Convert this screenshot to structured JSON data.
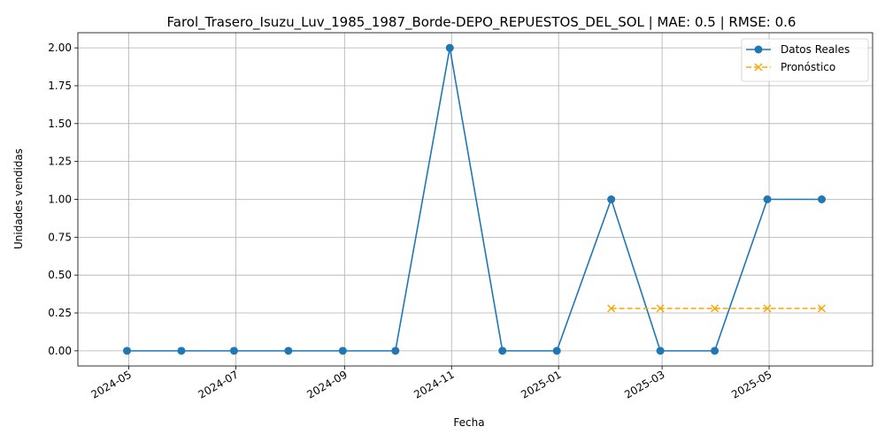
{
  "chart_data": {
    "type": "line",
    "title": "Farol_Trasero_Isuzu_Luv_1985_1987_Borde-DEPO_REPUESTOS_DEL_SOL | MAE: 0.5 | RMSE: 0.6",
    "xlabel": "Fecha",
    "ylabel": "Unidades vendidas",
    "xlim": [
      "2024-04-02",
      "2025-06-29"
    ],
    "ylim": [
      -0.1,
      2.1
    ],
    "x_ticks": [
      "2024-05",
      "2024-07",
      "2024-09",
      "2024-11",
      "2025-01",
      "2025-03",
      "2025-05"
    ],
    "y_ticks": [
      "0.00",
      "0.25",
      "0.50",
      "0.75",
      "1.00",
      "1.25",
      "1.50",
      "1.75",
      "2.00"
    ],
    "grid": true,
    "legend_position": "top-right",
    "series": [
      {
        "name": "Datos Reales",
        "color": "#1f77b4",
        "marker": "circle",
        "linestyle": "solid",
        "x": [
          "2024-04-30",
          "2024-05-31",
          "2024-06-30",
          "2024-07-31",
          "2024-08-31",
          "2024-09-30",
          "2024-10-31",
          "2024-11-30",
          "2024-12-31",
          "2025-01-31",
          "2025-02-28",
          "2025-03-31",
          "2025-04-30",
          "2025-05-31"
        ],
        "y": [
          0,
          0,
          0,
          0,
          0,
          0,
          2,
          0,
          0,
          1,
          0,
          0,
          1,
          1
        ]
      },
      {
        "name": "Pronóstico",
        "color": "#ffa500",
        "marker": "x",
        "linestyle": "dashed",
        "x": [
          "2025-01-31",
          "2025-02-28",
          "2025-03-31",
          "2025-04-30",
          "2025-05-31"
        ],
        "y": [
          0.28,
          0.28,
          0.28,
          0.28,
          0.28
        ]
      }
    ]
  }
}
